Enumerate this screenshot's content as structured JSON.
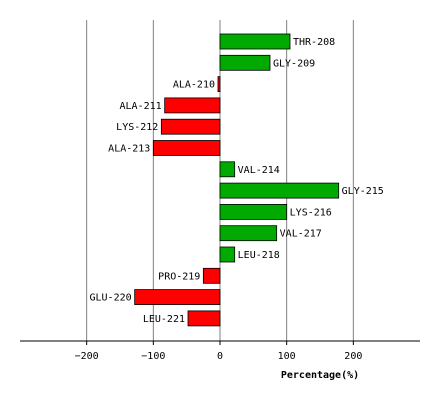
{
  "chart_data": {
    "type": "bar",
    "orientation": "horizontal",
    "xlabel": "Percentage(%)",
    "xlim": [
      -300,
      300
    ],
    "xticks": [
      -200,
      -100,
      0,
      100,
      200
    ],
    "xtick_labels": [
      "−200",
      "−100",
      "0",
      "100",
      "200"
    ],
    "grid": true,
    "colors": {
      "positive": "#00aa00",
      "negative": "#ff0000",
      "grid": "#808080"
    },
    "categories": [
      "THR-208",
      "GLY-209",
      "ALA-210",
      "ALA-211",
      "LYS-212",
      "ALA-213",
      "VAL-214",
      "GLY-215",
      "LYS-216",
      "VAL-217",
      "LEU-218",
      "PRO-219",
      "GLU-220",
      "LEU-221"
    ],
    "values": [
      105,
      75,
      -3,
      -83,
      -88,
      -100,
      22,
      178,
      100,
      85,
      22,
      -25,
      -128,
      -48
    ]
  }
}
